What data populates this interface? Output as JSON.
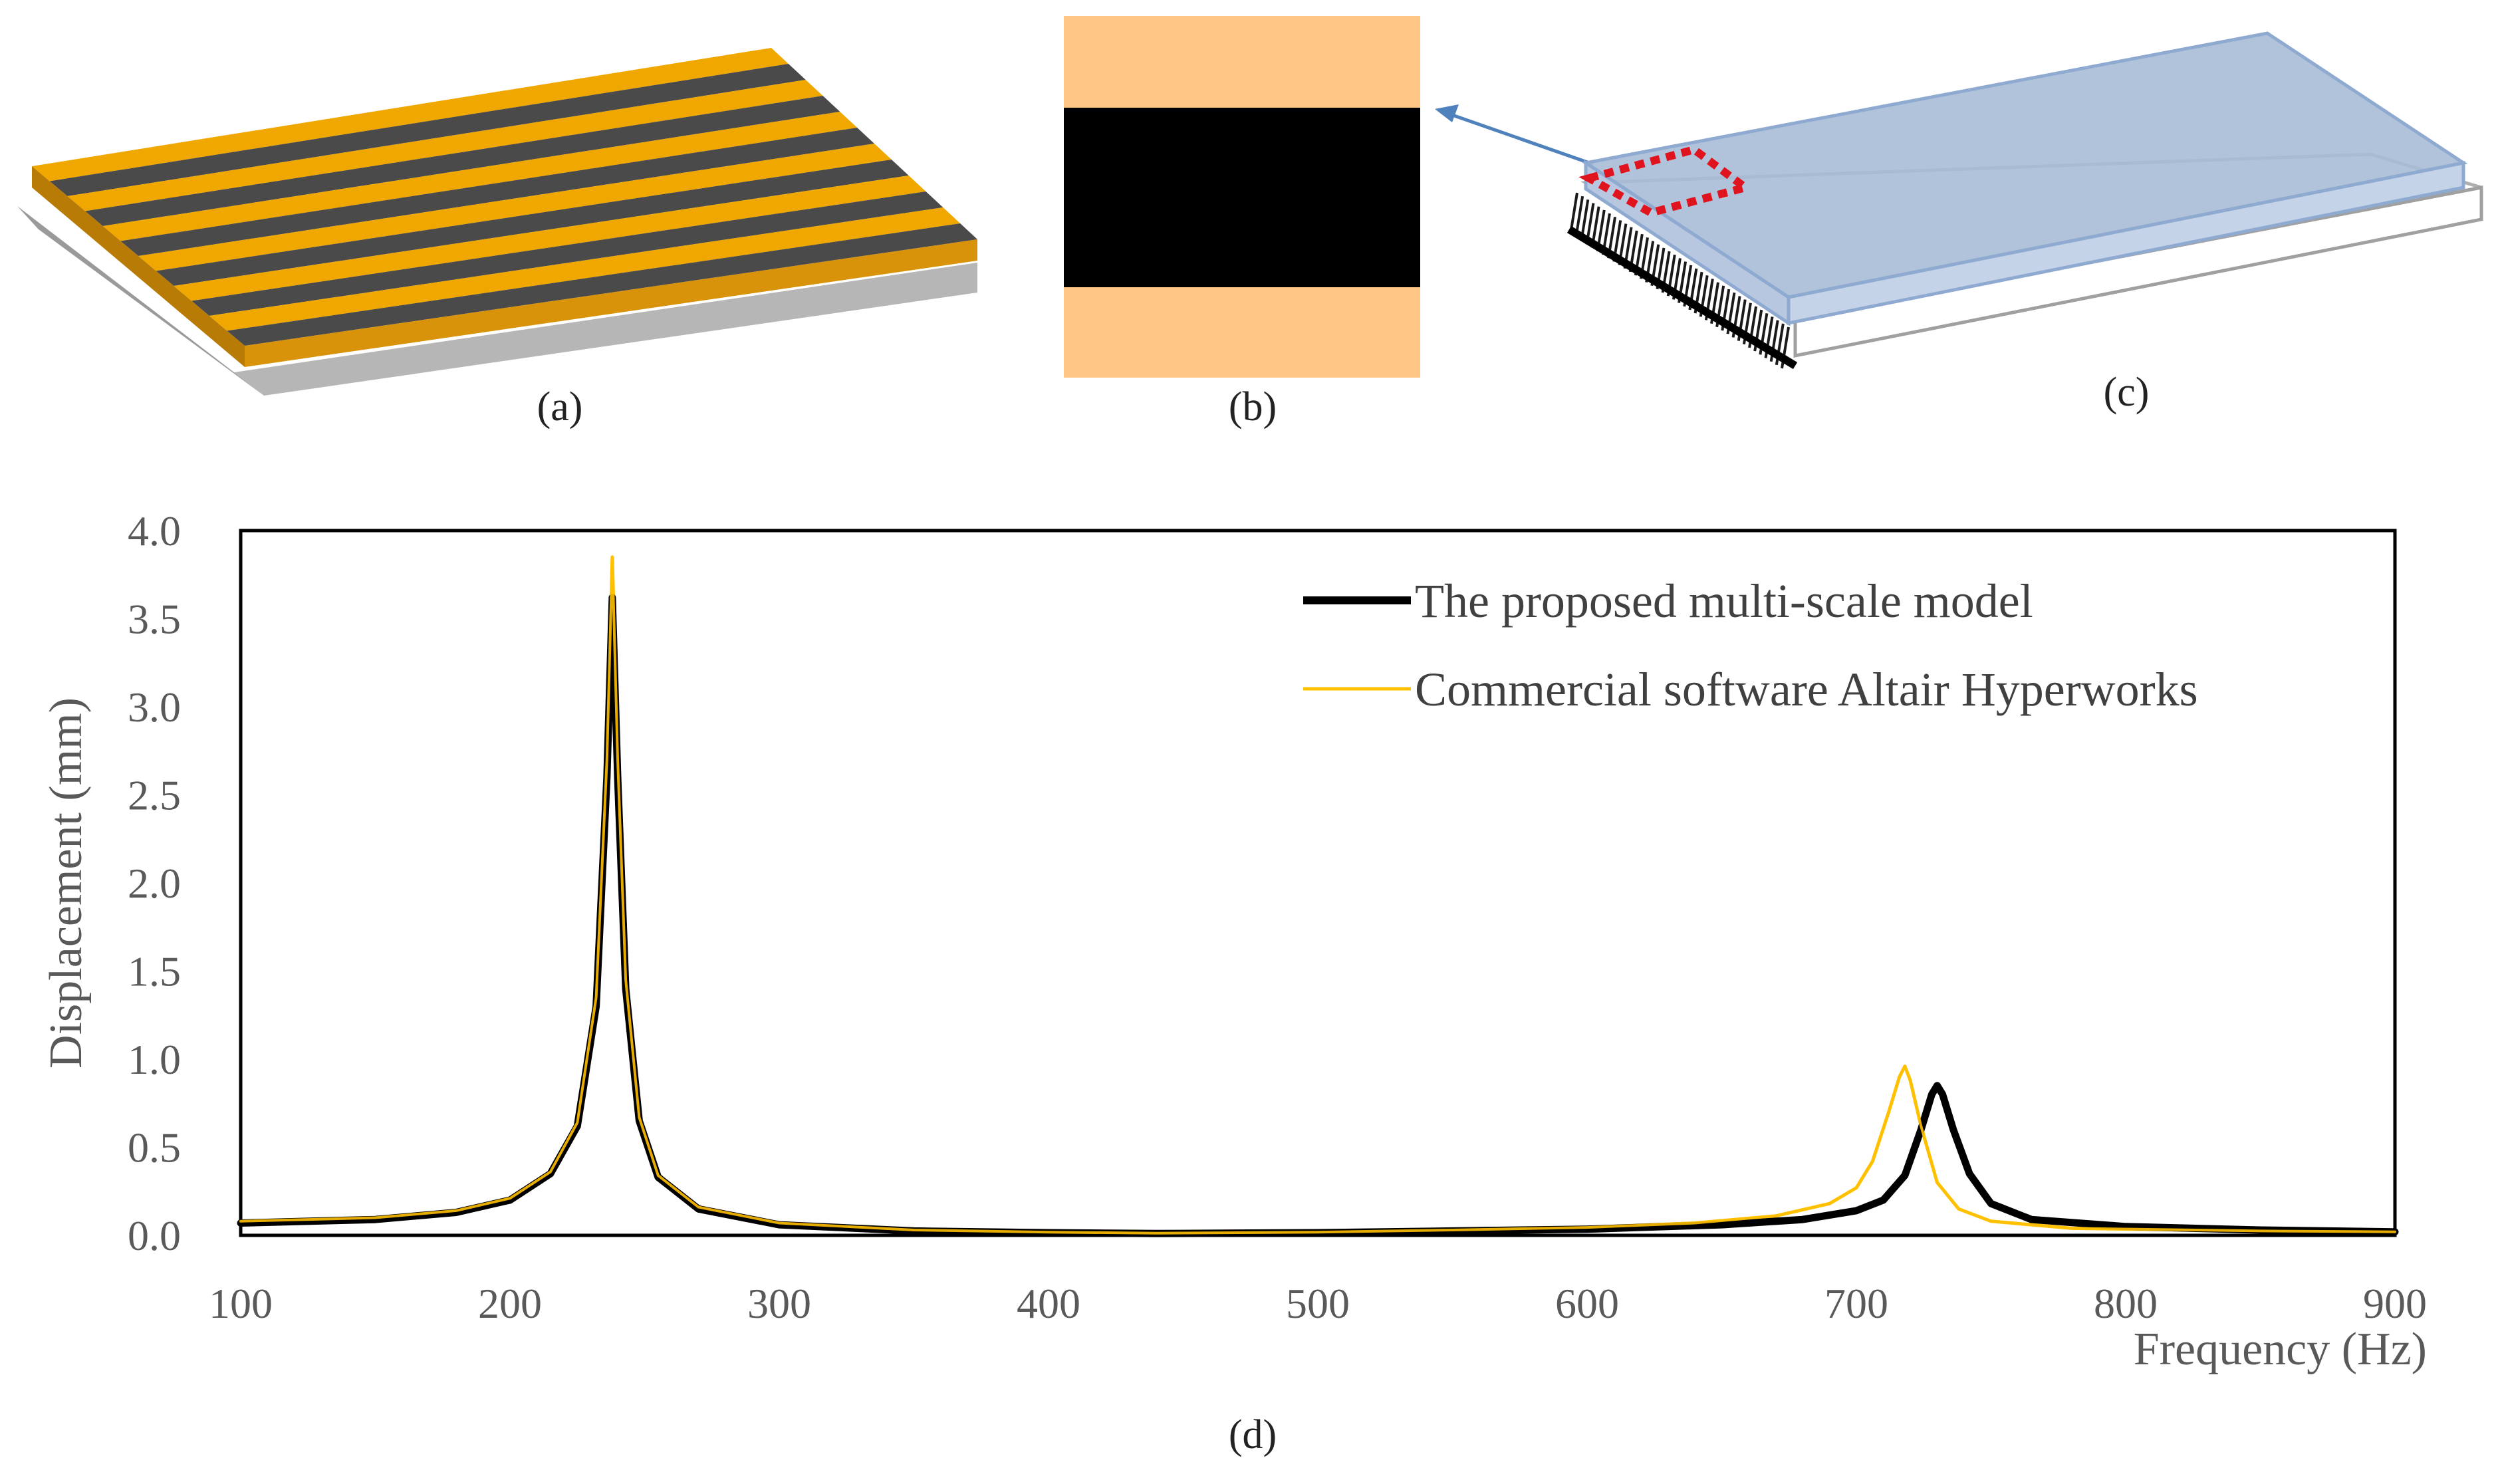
{
  "figure": {
    "panel_labels": {
      "a": "(a)",
      "b": "(b)",
      "c": "(c)",
      "d": "(d)"
    }
  },
  "colors": {
    "gold": "#F0A800",
    "dark_strip": "#4A4A4A",
    "peach": "#FFC685",
    "black": "#000000",
    "plate_blue": "#A9BCD6",
    "plate_edge": "#8FAAD0",
    "arrow_blue": "#4F81BD",
    "red_dash": "#E0141E",
    "axis_gray": "#595959"
  },
  "chart_data": {
    "type": "line",
    "title": "",
    "xlabel": "Frequency (Hz)",
    "ylabel": "Displacement (mm)",
    "xlim": [
      100,
      900
    ],
    "ylim": [
      0,
      4.0
    ],
    "x_ticks": [
      "100",
      "200",
      "300",
      "400",
      "500",
      "600",
      "700",
      "800",
      "900"
    ],
    "y_ticks": [
      "0.0",
      "0.5",
      "1.0",
      "1.5",
      "2.0",
      "2.5",
      "3.0",
      "3.5",
      "4.0"
    ],
    "legend_position": "top-right",
    "series": [
      {
        "name": "The proposed multi-scale model",
        "color": "#000000",
        "line_width": "thick",
        "x": [
          100,
          150,
          180,
          200,
          215,
          225,
          232,
          236,
          238,
          240,
          243,
          248,
          255,
          270,
          300,
          350,
          400,
          440,
          500,
          550,
          600,
          650,
          680,
          700,
          710,
          718,
          724,
          728,
          730,
          732,
          736,
          742,
          750,
          765,
          800,
          850,
          900
        ],
        "values": [
          0.07,
          0.09,
          0.13,
          0.2,
          0.35,
          0.62,
          1.3,
          2.6,
          3.62,
          2.6,
          1.4,
          0.65,
          0.33,
          0.15,
          0.06,
          0.025,
          0.015,
          0.01,
          0.015,
          0.025,
          0.035,
          0.06,
          0.09,
          0.14,
          0.2,
          0.34,
          0.6,
          0.8,
          0.85,
          0.8,
          0.6,
          0.35,
          0.18,
          0.09,
          0.05,
          0.03,
          0.02
        ]
      },
      {
        "name": "Commercial software Altair Hyperworks",
        "color": "#FFC000",
        "line_width": "thin",
        "x": [
          100,
          150,
          180,
          200,
          215,
          225,
          232,
          236,
          238,
          240,
          243,
          248,
          255,
          270,
          300,
          350,
          400,
          440,
          500,
          550,
          600,
          640,
          670,
          690,
          700,
          706,
          712,
          716,
          718,
          720,
          724,
          730,
          738,
          750,
          780,
          850,
          900
        ],
        "values": [
          0.08,
          0.1,
          0.14,
          0.21,
          0.36,
          0.64,
          1.35,
          2.7,
          3.85,
          2.7,
          1.45,
          0.67,
          0.34,
          0.16,
          0.07,
          0.03,
          0.018,
          0.012,
          0.018,
          0.03,
          0.045,
          0.07,
          0.11,
          0.18,
          0.27,
          0.42,
          0.7,
          0.9,
          0.96,
          0.88,
          0.62,
          0.3,
          0.15,
          0.08,
          0.04,
          0.025,
          0.02
        ]
      }
    ]
  }
}
